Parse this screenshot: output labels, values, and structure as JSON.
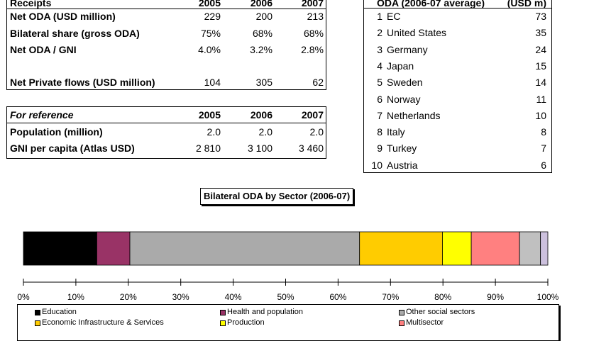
{
  "receipts": {
    "header": {
      "label": "Receipts",
      "years": [
        "2005",
        "2006",
        "2007"
      ]
    },
    "rows": [
      {
        "label": "Net ODA (USD million)",
        "values": [
          "229",
          "200",
          "213"
        ]
      },
      {
        "label": "Bilateral share (gross ODA)",
        "values": [
          "75%",
          "68%",
          "68%"
        ]
      },
      {
        "label": "Net ODA / GNI",
        "values": [
          "4.0%",
          "3.2%",
          "2.8%"
        ]
      },
      {
        "label": "Net Private flows (USD million)",
        "values": [
          "104",
          "305",
          "62"
        ]
      }
    ]
  },
  "reference": {
    "header": {
      "label": "For reference",
      "years": [
        "2005",
        "2006",
        "2007"
      ]
    },
    "rows": [
      {
        "label": "Population (million)",
        "values": [
          "2.0",
          "2.0",
          "2.0"
        ]
      },
      {
        "label": "GNI per capita (Atlas USD)",
        "values": [
          "2 810",
          "3 100",
          "3 460"
        ]
      }
    ]
  },
  "donors": {
    "header": {
      "label": "ODA (2006-07 average)",
      "unit": "(USD m)"
    },
    "rows": [
      {
        "rank": "1",
        "name": "EC",
        "value": "73"
      },
      {
        "rank": "2",
        "name": "United States",
        "value": "35"
      },
      {
        "rank": "3",
        "name": "Germany",
        "value": "24"
      },
      {
        "rank": "4",
        "name": "Japan",
        "value": "15"
      },
      {
        "rank": "5",
        "name": "Sweden",
        "value": "14"
      },
      {
        "rank": "6",
        "name": "Norway",
        "value": "11"
      },
      {
        "rank": "7",
        "name": "Netherlands",
        "value": "10"
      },
      {
        "rank": "8",
        "name": "Italy",
        "value": "8"
      },
      {
        "rank": "9",
        "name": "Turkey",
        "value": "7"
      },
      {
        "rank": "10",
        "name": "Austria",
        "value": "6"
      }
    ]
  },
  "chart_data": {
    "type": "bar",
    "stacked": true,
    "orientation": "horizontal",
    "title": "Bilateral ODA by Sector (2006-07)",
    "xlim": [
      0,
      100
    ],
    "x_ticks": [
      "0%",
      "10%",
      "20%",
      "30%",
      "40%",
      "50%",
      "60%",
      "70%",
      "80%",
      "90%",
      "100%"
    ],
    "grid": false,
    "legend_position": "bottom",
    "series": [
      {
        "name": "Education",
        "value": 14,
        "color": "#000000"
      },
      {
        "name": "Health and population",
        "value": 6.3,
        "color": "#993366"
      },
      {
        "name": "Other social sectors",
        "value": 43.8,
        "color": "#aaaaaa"
      },
      {
        "name": "Economic Infrastructure & Services",
        "value": 15.8,
        "color": "#ffcc00"
      },
      {
        "name": "Production",
        "value": 5.5,
        "color": "#ffff00"
      },
      {
        "name": "Multisector",
        "value": 9.2,
        "color": "#ff8080"
      },
      {
        "name": "",
        "value": 4,
        "color": "#c0c0c0"
      },
      {
        "name": "",
        "value": 1.4,
        "color": "#ccc0dd"
      }
    ]
  }
}
